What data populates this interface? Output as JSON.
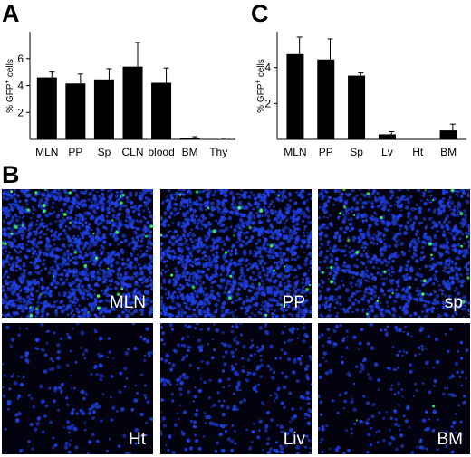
{
  "panels": {
    "a_letter": "A",
    "b_letter": "B",
    "c_letter": "C"
  },
  "chart_data": [
    {
      "type": "bar",
      "panel": "A",
      "ylabel": "% GFP+ cells",
      "ylabel_main": "% GFP",
      "ylabel_sup": "+",
      "ylabel_tail": " cells",
      "categories": [
        "MLN",
        "PP",
        "Sp",
        "CLN",
        "blood",
        "BM",
        "Thy"
      ],
      "values": [
        4.6,
        4.15,
        4.45,
        5.4,
        4.2,
        0.12,
        0.02
      ],
      "errors": [
        0.4,
        0.7,
        0.8,
        1.8,
        1.1,
        0.08,
        0.08
      ],
      "ylim": [
        0,
        8
      ],
      "yticks": [
        "2",
        "4",
        "6"
      ],
      "grid": false,
      "bar_color": "#000000"
    },
    {
      "type": "bar",
      "panel": "C",
      "ylabel": "% GFP+ cells",
      "ylabel_main": "% GFP",
      "ylabel_sup": "+",
      "ylabel_tail": " cells",
      "categories": [
        "MLN",
        "PP",
        "Sp",
        "Lv",
        "Ht",
        "BM"
      ],
      "values": [
        4.75,
        4.45,
        3.55,
        0.28,
        0.0,
        0.5
      ],
      "errors": [
        0.95,
        1.15,
        0.15,
        0.15,
        0.0,
        0.35
      ],
      "ylim": [
        0,
        6
      ],
      "yticks": [
        "2",
        "4"
      ],
      "grid": false,
      "bar_color": "#000000"
    }
  ],
  "micrographs": {
    "top_row": [
      {
        "label": "MLN",
        "density": 0.9,
        "gfp": 0.45
      },
      {
        "label": "PP",
        "density": 0.85,
        "gfp": 0.3
      },
      {
        "label": "sp",
        "density": 0.6,
        "gfp": 0.35
      }
    ],
    "bottom_row": [
      {
        "label": "Ht",
        "density": 0.12,
        "gfp": 0.0
      },
      {
        "label": "Liv",
        "density": 0.2,
        "gfp": 0.0
      },
      {
        "label": "BM",
        "density": 0.13,
        "gfp": 0.03
      }
    ],
    "colors": {
      "nuclei": "#1f3fe0",
      "gfp": "#3cff6a",
      "background": "#03030f",
      "label": "#ffffff"
    }
  }
}
